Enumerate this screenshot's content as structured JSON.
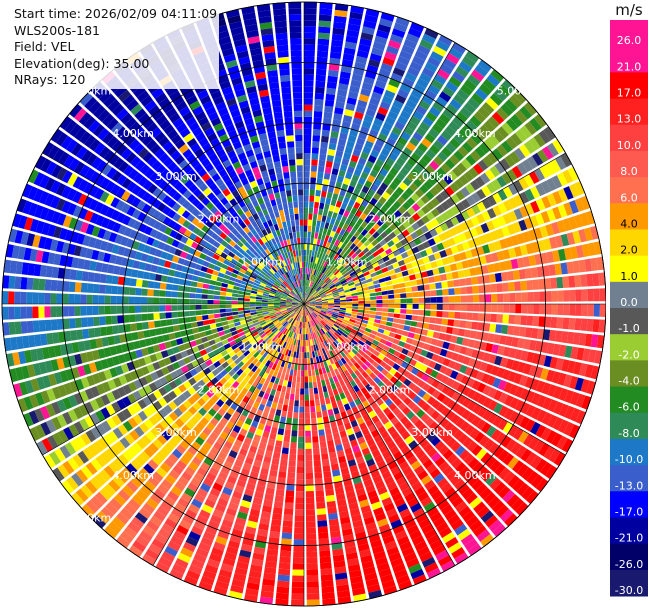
{
  "header": {
    "start_time": "Start time: 2026/02/09 04:11:09",
    "instrument": "WLS200s-181",
    "field": "Field: VEL",
    "elevation": "Elevation(deg): 35.00",
    "nrays": "NRays: 120"
  },
  "chart_data": {
    "type": "heatmap",
    "projection": "polar PPI",
    "field": "VEL",
    "units": "m/s",
    "nrays": 120,
    "range_rings_km": [
      1.0,
      2.0,
      3.0,
      4.0,
      5.0
    ],
    "ring_labels": {
      "upper_left": [
        "1.00km",
        "2.00km",
        "3.00km",
        "4.00km",
        "5.00km"
      ],
      "upper_right": [
        "1.00km",
        "2.00km",
        "3.00km",
        "4.00km",
        "5.00km"
      ],
      "lower_left": [
        "1.00km",
        "2.00km",
        "3.00km",
        "4.00km",
        "5.00km"
      ],
      "lower_right": [
        "1.00km",
        "2.00km",
        "3.00km",
        "4.00km"
      ]
    },
    "velocity_pattern": {
      "approx_max_positive_azimuth_deg": 150,
      "approx_max_negative_azimuth_deg": 315,
      "peak_velocity_ms": 21,
      "noisy_near_range_km": 2.5
    },
    "colorbar": {
      "unit": "m/s",
      "ticks": [
        "26.0",
        "21.0",
        "17.0",
        "13.0",
        "10.0",
        "8.0",
        "6.0",
        "4.0",
        "2.0",
        "1.0",
        "0.0",
        "-1.0",
        "-2.0",
        "-4.0",
        "-6.0",
        "-8.0",
        "-10.0",
        "-13.0",
        "-17.0",
        "-21.0",
        "-26.0",
        "-30.0"
      ],
      "colors": [
        "#ff1493",
        "#ff1493",
        "#ff0000",
        "#ff2020",
        "#ff4040",
        "#ff5a50",
        "#ff7050",
        "#ff9900",
        "#ffd700",
        "#ffff00",
        "#708090",
        "#585858",
        "#9acd32",
        "#6b8e23",
        "#228b22",
        "#2e8b57",
        "#1e78c8",
        "#3a5fcd",
        "#0000ff",
        "#0000a0",
        "#000068",
        "#191970"
      ]
    }
  }
}
